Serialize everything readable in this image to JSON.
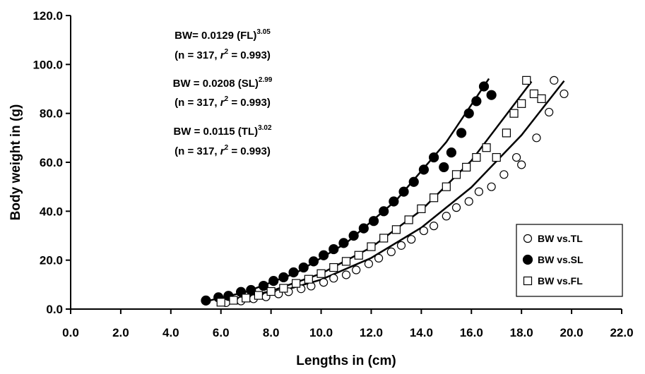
{
  "chart_data": {
    "type": "scatter",
    "x_label": "Lengths in  (cm)",
    "y_label": "Body weight in (g)",
    "xlim": [
      0,
      22
    ],
    "ylim": [
      0,
      120
    ],
    "xticks": [
      {
        "value": 0,
        "label": "0.0"
      },
      {
        "value": 2,
        "label": "2.0"
      },
      {
        "value": 4,
        "label": "4.0"
      },
      {
        "value": 6,
        "label": "6.0"
      },
      {
        "value": 8,
        "label": "8.0"
      },
      {
        "value": 10,
        "label": "10.0"
      },
      {
        "value": 12,
        "label": "12.0"
      },
      {
        "value": 14,
        "label": "14.0"
      },
      {
        "value": 16,
        "label": "16.0"
      },
      {
        "value": 18,
        "label": "18.0"
      },
      {
        "value": 20,
        "label": "20.0"
      },
      {
        "value": 22,
        "label": "22.0"
      }
    ],
    "yticks": [
      {
        "value": 0,
        "label": "0.0"
      },
      {
        "value": 20,
        "label": "20.0"
      },
      {
        "value": 40,
        "label": "40.0"
      },
      {
        "value": 60,
        "label": "60.0"
      },
      {
        "value": 80,
        "label": "80.0"
      },
      {
        "value": 100,
        "label": "100.0"
      },
      {
        "value": 120,
        "label": "120.0"
      }
    ],
    "legend_position": "lower right",
    "annotations": [
      {
        "text": "BW= 0.0129 (FL)",
        "sup": "3.05"
      },
      {
        "text": "(n = 317, ",
        "italic": "r",
        "sup": "2",
        "tail": " = 0.993)"
      },
      {
        "text": "BW = 0.0208 (SL)",
        "sup": "2.99"
      },
      {
        "text": "(n = 317, ",
        "italic": "r",
        "sup": "2",
        "tail": " = 0.993)"
      },
      {
        "text": "BW = 0.0115 (TL)",
        "sup": "3.02"
      },
      {
        "text": "(n = 317, ",
        "italic": "r",
        "sup": "2",
        "tail": " = 0.993)"
      }
    ],
    "series": [
      {
        "name": "BW vs.TL",
        "color": "#000000",
        "marker": "circle",
        "filled": false,
        "x": [
          6.2,
          6.8,
          7.3,
          7.8,
          8.3,
          8.7,
          9.2,
          9.6,
          10.1,
          10.5,
          11.0,
          11.4,
          11.9,
          12.3,
          12.8,
          13.2,
          13.6,
          14.1,
          14.5,
          15.0,
          15.4,
          15.9,
          16.3,
          16.8,
          17.3,
          17.8,
          18.0,
          18.6,
          19.1,
          19.3,
          19.7
        ],
        "values": [
          2.6,
          3.3,
          4.2,
          5.0,
          6.2,
          7.1,
          8.3,
          9.4,
          10.9,
          12.6,
          14.0,
          16.0,
          18.5,
          20.8,
          23.4,
          26.0,
          28.5,
          32.0,
          34.0,
          38.0,
          41.5,
          44.0,
          48.0,
          50.0,
          55.0,
          62.0,
          59.0,
          70.0,
          80.5,
          93.5,
          88.0
        ]
      },
      {
        "name": "BW vs.SL",
        "color": "#000000",
        "marker": "circle",
        "filled": true,
        "x": [
          5.4,
          5.9,
          6.3,
          6.8,
          7.2,
          7.7,
          8.1,
          8.5,
          8.9,
          9.3,
          9.7,
          10.1,
          10.5,
          10.9,
          11.3,
          11.7,
          12.1,
          12.5,
          12.9,
          13.3,
          13.7,
          14.1,
          14.5,
          14.9,
          15.2,
          15.6,
          15.9,
          16.2,
          16.5,
          16.8
        ],
        "values": [
          3.5,
          4.8,
          5.4,
          7.0,
          7.8,
          9.5,
          11.5,
          13.0,
          15.0,
          17.0,
          19.5,
          22.0,
          24.5,
          27.0,
          30.0,
          33.0,
          36.0,
          40.0,
          44.0,
          48.0,
          52.0,
          57.0,
          62.0,
          58.0,
          64.0,
          72.0,
          80.0,
          85.0,
          91.0,
          87.5
        ]
      },
      {
        "name": "BW vs.FL",
        "color": "#000000",
        "marker": "square",
        "filled": false,
        "x": [
          6.0,
          6.5,
          7.0,
          7.5,
          8.0,
          8.5,
          9.0,
          9.5,
          10.0,
          10.5,
          11.0,
          11.5,
          12.0,
          12.5,
          13.0,
          13.5,
          14.0,
          14.5,
          15.0,
          15.4,
          15.8,
          16.2,
          16.6,
          17.0,
          17.4,
          17.7,
          18.0,
          18.2,
          18.5,
          18.8
        ],
        "values": [
          2.8,
          3.6,
          4.5,
          5.6,
          7.2,
          8.5,
          10.5,
          12.2,
          14.5,
          17.0,
          19.5,
          22.0,
          25.5,
          29.0,
          32.5,
          36.5,
          41.0,
          45.5,
          50.0,
          55.0,
          58.0,
          62.0,
          66.0,
          62.0,
          72.0,
          80.0,
          84.0,
          93.5,
          88.0,
          86.0
        ]
      }
    ],
    "fits": [
      {
        "color": "#000000",
        "x": [
          6,
          8,
          10,
          12,
          14,
          16,
          18,
          19.7
        ],
        "values": [
          2.57,
          6.14,
          12.04,
          20.9,
          33.3,
          49.8,
          71.1,
          93.3
        ]
      },
      {
        "color": "#000000",
        "x": [
          5.5,
          7,
          9,
          11,
          13,
          15,
          16.7
        ],
        "values": [
          3.4,
          7.0,
          14.8,
          27.0,
          44.5,
          68.3,
          94.2
        ]
      },
      {
        "color": "#000000",
        "x": [
          6,
          8,
          10,
          12,
          14,
          16,
          18.4
        ],
        "values": [
          3.05,
          7.33,
          14.5,
          25.2,
          40.4,
          60.7,
          93.0
        ]
      }
    ]
  }
}
